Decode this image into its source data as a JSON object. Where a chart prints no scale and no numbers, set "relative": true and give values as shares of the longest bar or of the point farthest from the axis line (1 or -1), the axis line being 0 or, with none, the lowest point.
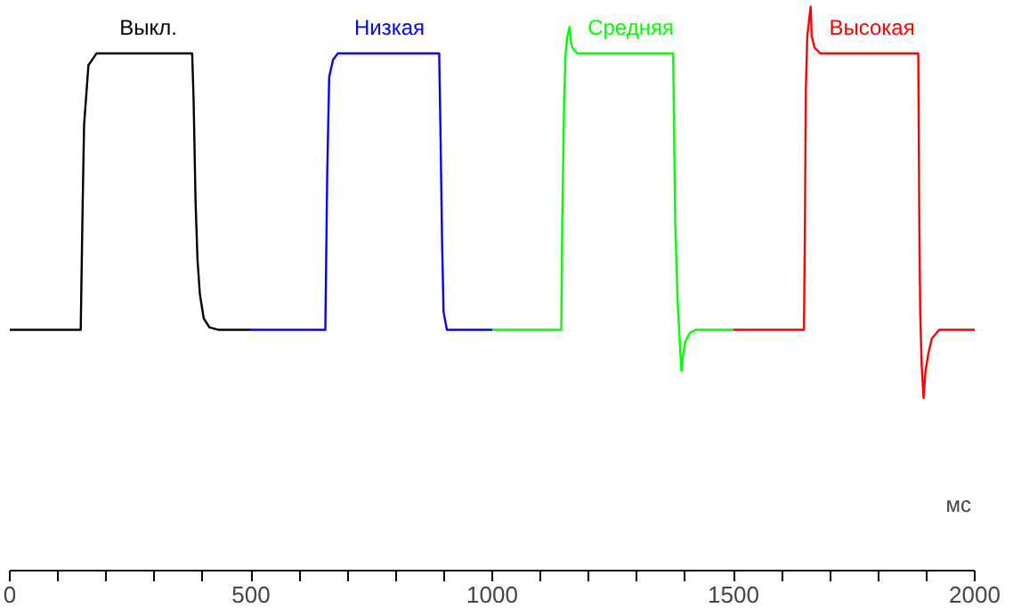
{
  "chart_data": {
    "type": "line",
    "relative": true,
    "xlabel": "мс",
    "xlim": [
      0,
      2000
    ],
    "xticks": [
      0,
      {
        "value": 100,
        "label": null
      },
      {
        "value": 200,
        "label": null
      },
      {
        "value": 300,
        "label": null
      },
      {
        "value": 400,
        "label": null
      },
      500,
      {
        "value": 600,
        "label": null
      },
      {
        "value": 700,
        "label": null
      },
      {
        "value": 800,
        "label": null
      },
      {
        "value": 900,
        "label": null
      },
      1000,
      {
        "value": 1100,
        "label": null
      },
      {
        "value": 1200,
        "label": null
      },
      {
        "value": 1300,
        "label": null
      },
      {
        "value": 1400,
        "label": null
      },
      1500,
      {
        "value": 1600,
        "label": null
      },
      {
        "value": 1700,
        "label": null
      },
      {
        "value": 1800,
        "label": null
      },
      {
        "value": 1900,
        "label": null
      },
      2000
    ],
    "grid": false,
    "marker": "none",
    "line_style": "solid",
    "series": [
      {
        "name": "Выкл.",
        "color": "#000000",
        "x": [
          0,
          147,
          151,
          154,
          163,
          180,
          378,
          381,
          385,
          389,
          394,
          402,
          414,
          432,
          500
        ],
        "values": [
          0.427,
          0.427,
          0.647,
          0.79,
          0.896,
          0.917,
          0.917,
          0.834,
          0.656,
          0.552,
          0.49,
          0.447,
          0.431,
          0.427,
          0.427
        ]
      },
      {
        "name": "Низкая",
        "color": "#0000ff",
        "x": [
          500,
          654,
          658,
          662,
          670,
          680,
          890,
          893,
          896,
          899,
          906,
          1000
        ],
        "values": [
          0.427,
          0.427,
          0.708,
          0.875,
          0.906,
          0.917,
          0.917,
          0.76,
          0.583,
          0.459,
          0.427,
          0.427
        ]
      },
      {
        "name": "Средняя",
        "color": "#00ff00",
        "x": [
          1000,
          1143,
          1145,
          1149,
          1152,
          1156,
          1160,
          1163,
          1166,
          1176,
          1375,
          1379,
          1384,
          1389,
          1392,
          1396,
          1400,
          1410,
          1422,
          1500
        ],
        "values": [
          0.427,
          0.427,
          0.615,
          0.834,
          0.917,
          0.948,
          0.964,
          0.938,
          0.927,
          0.917,
          0.917,
          0.625,
          0.479,
          0.4,
          0.354,
          0.385,
          0.406,
          0.422,
          0.427,
          0.427
        ]
      },
      {
        "name": "Высокая",
        "color": "#ff0000",
        "x": [
          1500,
          1646,
          1648,
          1650,
          1653,
          1657,
          1660,
          1662,
          1668,
          1680,
          1883,
          1885,
          1887,
          1890,
          1894,
          1898,
          1904,
          1911,
          1926,
          2000
        ],
        "values": [
          0.427,
          0.427,
          0.604,
          0.854,
          0.948,
          0.979,
          1.0,
          0.948,
          0.927,
          0.917,
          0.917,
          0.635,
          0.458,
          0.365,
          0.306,
          0.354,
          0.385,
          0.411,
          0.427,
          0.427
        ]
      }
    ]
  }
}
